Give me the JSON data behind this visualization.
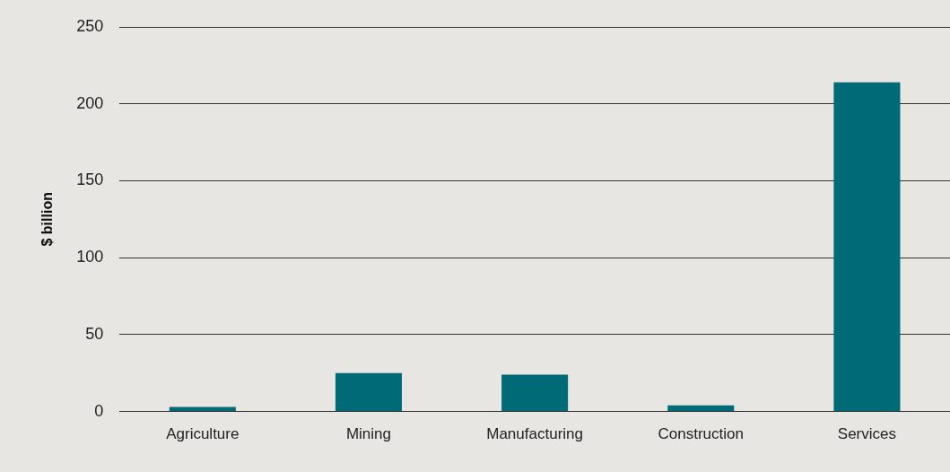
{
  "chart_data": {
    "type": "bar",
    "ylabel": "$ billion",
    "categories": [
      "Agriculture",
      "Mining",
      "Manufacturing",
      "Construction",
      "Services"
    ],
    "values": [
      3,
      25,
      24,
      4,
      214
    ],
    "color": "#006b77",
    "ylim": [
      0,
      250
    ],
    "yticks": [
      0,
      50,
      100,
      150,
      200,
      250
    ],
    "grid": "y"
  }
}
